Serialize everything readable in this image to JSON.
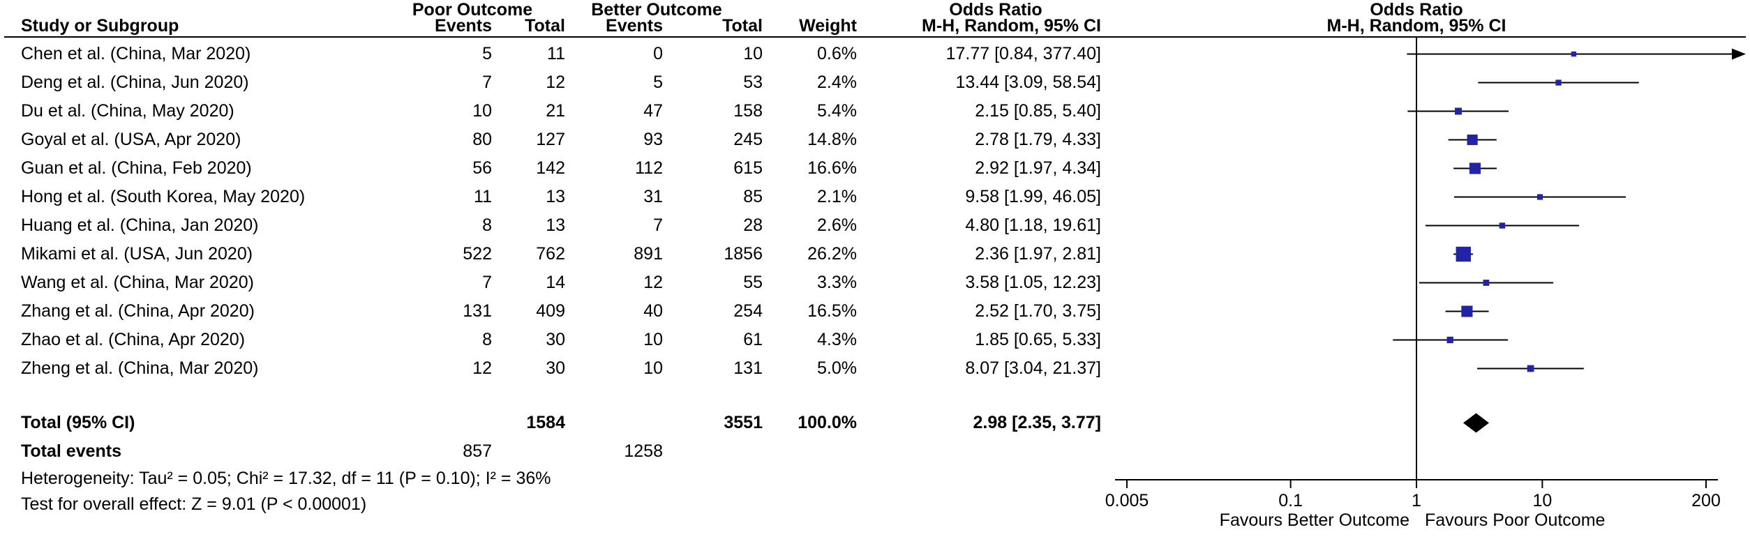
{
  "colors": {
    "line": "#000000",
    "marker": "#2323a8",
    "diamond": "#000000",
    "text": "#000000"
  },
  "header": {
    "group_poor": "Poor Outcome",
    "group_better": "Better Outcome",
    "group_or_text": "Odds Ratio",
    "group_or_plot": "Odds Ratio",
    "study": "Study or Subgroup",
    "events1": "Events",
    "total1": "Total",
    "events2": "Events",
    "total2": "Total",
    "weight": "Weight",
    "mh_text": "M-H, Random, 95% CI",
    "mh_plot": "M-H, Random, 95% CI"
  },
  "footnotes": {
    "heterogeneity": "Heterogeneity: Tau² = 0.05; Chi² = 17.32, df = 11 (P = 0.10); I² = 36%",
    "overall": "Test for overall effect: Z = 9.01 (P < 0.00001)"
  },
  "chart_data": {
    "type": "forest",
    "effect_measure": "Odds Ratio, M-H, Random, 95% CI",
    "scale": "log",
    "studies": [
      {
        "name": "Chen et al. (China, Mar 2020)",
        "events1": 5,
        "total1": 11,
        "events2": 0,
        "total2": 10,
        "weight": "0.6%",
        "weight_pct": 0.6,
        "or_text": "17.77 [0.84, 377.40]",
        "or": 17.77,
        "lo": 0.84,
        "hi": 377.4
      },
      {
        "name": "Deng et al. (China, Jun 2020)",
        "events1": 7,
        "total1": 12,
        "events2": 5,
        "total2": 53,
        "weight": "2.4%",
        "weight_pct": 2.4,
        "or_text": "13.44 [3.09, 58.54]",
        "or": 13.44,
        "lo": 3.09,
        "hi": 58.54
      },
      {
        "name": "Du et al. (China, May 2020)",
        "events1": 10,
        "total1": 21,
        "events2": 47,
        "total2": 158,
        "weight": "5.4%",
        "weight_pct": 5.4,
        "or_text": "2.15 [0.85, 5.40]",
        "or": 2.15,
        "lo": 0.85,
        "hi": 5.4
      },
      {
        "name": "Goyal et al. (USA, Apr 2020)",
        "events1": 80,
        "total1": 127,
        "events2": 93,
        "total2": 245,
        "weight": "14.8%",
        "weight_pct": 14.8,
        "or_text": "2.78 [1.79, 4.33]",
        "or": 2.78,
        "lo": 1.79,
        "hi": 4.33
      },
      {
        "name": "Guan et al. (China, Feb 2020)",
        "events1": 56,
        "total1": 142,
        "events2": 112,
        "total2": 615,
        "weight": "16.6%",
        "weight_pct": 16.6,
        "or_text": "2.92 [1.97, 4.34]",
        "or": 2.92,
        "lo": 1.97,
        "hi": 4.34
      },
      {
        "name": "Hong et al. (South Korea, May 2020)",
        "events1": 11,
        "total1": 13,
        "events2": 31,
        "total2": 85,
        "weight": "2.1%",
        "weight_pct": 2.1,
        "or_text": "9.58 [1.99, 46.05]",
        "or": 9.58,
        "lo": 1.99,
        "hi": 46.05
      },
      {
        "name": "Huang et al. (China, Jan 2020)",
        "events1": 8,
        "total1": 13,
        "events2": 7,
        "total2": 28,
        "weight": "2.6%",
        "weight_pct": 2.6,
        "or_text": "4.80 [1.18, 19.61]",
        "or": 4.8,
        "lo": 1.18,
        "hi": 19.61
      },
      {
        "name": "Mikami et al. (USA, Jun 2020)",
        "events1": 522,
        "total1": 762,
        "events2": 891,
        "total2": 1856,
        "weight": "26.2%",
        "weight_pct": 26.2,
        "or_text": "2.36 [1.97, 2.81]",
        "or": 2.36,
        "lo": 1.97,
        "hi": 2.81
      },
      {
        "name": "Wang et al. (China, Mar 2020)",
        "events1": 7,
        "total1": 14,
        "events2": 12,
        "total2": 55,
        "weight": "3.3%",
        "weight_pct": 3.3,
        "or_text": "3.58 [1.05, 12.23]",
        "or": 3.58,
        "lo": 1.05,
        "hi": 12.23
      },
      {
        "name": "Zhang et al. (China, Apr 2020)",
        "events1": 131,
        "total1": 409,
        "events2": 40,
        "total2": 254,
        "weight": "16.5%",
        "weight_pct": 16.5,
        "or_text": "2.52 [1.70, 3.75]",
        "or": 2.52,
        "lo": 1.7,
        "hi": 3.75
      },
      {
        "name": "Zhao et al. (China, Apr 2020)",
        "events1": 8,
        "total1": 30,
        "events2": 10,
        "total2": 61,
        "weight": "4.3%",
        "weight_pct": 4.3,
        "or_text": "1.85 [0.65, 5.33]",
        "or": 1.85,
        "lo": 0.65,
        "hi": 5.33
      },
      {
        "name": "Zheng et al. (China, Mar 2020)",
        "events1": 12,
        "total1": 30,
        "events2": 10,
        "total2": 131,
        "weight": "5.0%",
        "weight_pct": 5.0,
        "or_text": "8.07 [3.04, 21.37]",
        "or": 8.07,
        "lo": 3.04,
        "hi": 21.37
      }
    ],
    "total": {
      "label": "Total (95% CI)",
      "total1": "1584",
      "total2": "3551",
      "weight": "100.0%",
      "or_text": "2.98 [2.35, 3.77]",
      "or": 2.98,
      "lo": 2.35,
      "hi": 3.77
    },
    "total_events": {
      "label": "Total events",
      "events1": "857",
      "events2": "1258"
    },
    "axis": {
      "min": 0.005,
      "max": 200,
      "ticks": [
        0.005,
        0.1,
        1,
        10,
        200
      ],
      "tick_labels": [
        "0.005",
        "0.1",
        "1",
        "10",
        "200"
      ],
      "favours_left": "Favours Better Outcome",
      "favours_right": "Favours Poor Outcome"
    }
  }
}
